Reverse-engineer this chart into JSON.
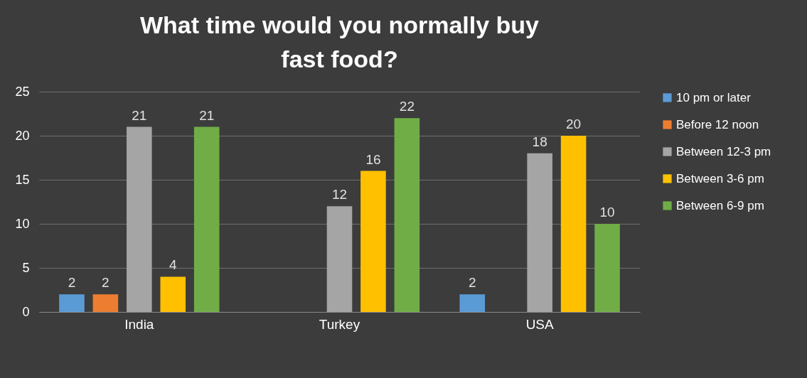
{
  "chart_data": {
    "type": "bar",
    "title": "What time would you normally buy fast food?",
    "categories": [
      "India",
      "Turkey",
      "USA"
    ],
    "series": [
      {
        "name": "10 pm or later",
        "color": "#5b9bd5",
        "values": [
          2,
          null,
          2
        ]
      },
      {
        "name": "Before 12 noon",
        "color": "#ed7d31",
        "values": [
          2,
          null,
          null
        ]
      },
      {
        "name": "Between 12-3 pm",
        "color": "#a5a5a5",
        "values": [
          21,
          12,
          18
        ]
      },
      {
        "name": "Between 3-6 pm",
        "color": "#ffc000",
        "values": [
          4,
          16,
          20
        ]
      },
      {
        "name": "Between 6-9 pm",
        "color": "#70ad47",
        "values": [
          21,
          22,
          10
        ]
      }
    ],
    "ylim": [
      0,
      25
    ],
    "yticks": [
      0,
      5,
      10,
      15,
      20,
      25
    ],
    "grid": "y",
    "legend": "right",
    "data_labels": true
  }
}
